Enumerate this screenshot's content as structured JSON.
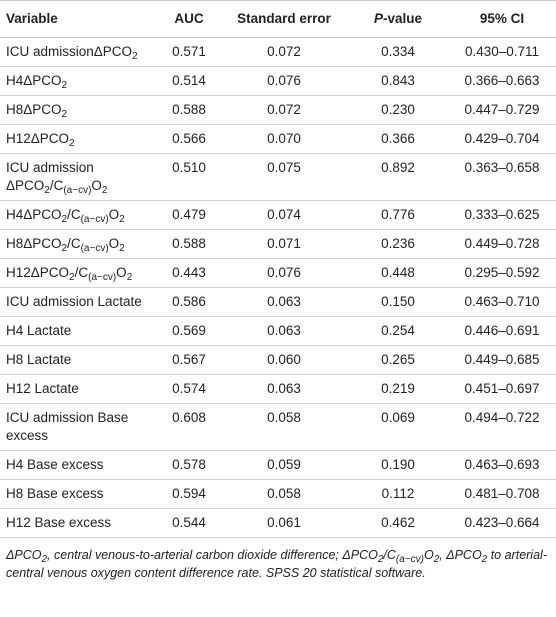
{
  "table": {
    "header": [
      [
        "Variable"
      ],
      [
        "AUC"
      ],
      [
        "Standard error"
      ],
      [
        {
          "i": "P"
        },
        "-value"
      ],
      [
        "95% CI"
      ]
    ],
    "rows": [
      {
        "variable": [
          "ICU admissionΔPCO",
          {
            "sub": "2"
          }
        ],
        "auc": "0.571",
        "se": "0.072",
        "p": "0.334",
        "ci": "0.430–0.711"
      },
      {
        "variable": [
          "H4ΔPCO",
          {
            "sub": "2"
          }
        ],
        "auc": "0.514",
        "se": "0.076",
        "p": "0.843",
        "ci": "0.366–0.663"
      },
      {
        "variable": [
          "H8ΔPCO",
          {
            "sub": "2"
          }
        ],
        "auc": "0.588",
        "se": "0.072",
        "p": "0.230",
        "ci": "0.447–0.729"
      },
      {
        "variable": [
          "H12ΔPCO",
          {
            "sub": "2"
          }
        ],
        "auc": "0.566",
        "se": "0.070",
        "p": "0.366",
        "ci": "0.429–0.704"
      },
      {
        "variable": [
          "ICU admission ΔPCO",
          {
            "sub": "2"
          },
          "/C",
          {
            "sub": "(a−cv)"
          },
          "O",
          {
            "sub": "2"
          }
        ],
        "auc": "0.510",
        "se": "0.075",
        "p": "0.892",
        "ci": "0.363–0.658"
      },
      {
        "variable": [
          "H4ΔPCO",
          {
            "sub": "2"
          },
          "/C",
          {
            "sub": "(a−cv)"
          },
          "O",
          {
            "sub": "2"
          }
        ],
        "auc": "0.479",
        "se": "0.074",
        "p": "0.776",
        "ci": "0.333–0.625"
      },
      {
        "variable": [
          "H8ΔPCO",
          {
            "sub": "2"
          },
          "/C",
          {
            "sub": "(a−cv)"
          },
          "O",
          {
            "sub": "2"
          }
        ],
        "auc": "0.588",
        "se": "0.071",
        "p": "0.236",
        "ci": "0.449–0.728"
      },
      {
        "variable": [
          "H12ΔPCO",
          {
            "sub": "2"
          },
          "/C",
          {
            "sub": "(a−cv)"
          },
          "O",
          {
            "sub": "2"
          }
        ],
        "auc": "0.443",
        "se": "0.076",
        "p": "0.448",
        "ci": "0.295–0.592"
      },
      {
        "variable": [
          "ICU admission Lactate"
        ],
        "auc": "0.586",
        "se": "0.063",
        "p": "0.150",
        "ci": "0.463–0.710"
      },
      {
        "variable": [
          "H4 Lactate"
        ],
        "auc": "0.569",
        "se": "0.063",
        "p": "0.254",
        "ci": "0.446–0.691"
      },
      {
        "variable": [
          "H8 Lactate"
        ],
        "auc": "0.567",
        "se": "0.060",
        "p": "0.265",
        "ci": "0.449–0.685"
      },
      {
        "variable": [
          "H12 Lactate"
        ],
        "auc": "0.574",
        "se": "0.063",
        "p": "0.219",
        "ci": "0.451–0.697"
      },
      {
        "variable": [
          "ICU admission Base excess"
        ],
        "auc": "0.608",
        "se": "0.058",
        "p": "0.069",
        "ci": "0.494–0.722"
      },
      {
        "variable": [
          "H4 Base excess"
        ],
        "auc": "0.578",
        "se": "0.059",
        "p": "0.190",
        "ci": "0.463–0.693"
      },
      {
        "variable": [
          "H8 Base excess"
        ],
        "auc": "0.594",
        "se": "0.058",
        "p": "0.112",
        "ci": "0.481–0.708"
      },
      {
        "variable": [
          "H12 Base excess"
        ],
        "auc": "0.544",
        "se": "0.061",
        "p": "0.462",
        "ci": "0.423–0.664"
      }
    ]
  },
  "footnote": [
    "ΔPCO",
    {
      "sub": "2"
    },
    ", central venous-to-arterial carbon dioxide difference; ΔPCO",
    {
      "sub": "2"
    },
    "/C",
    {
      "sub": "(a−cv)"
    },
    "O",
    {
      "sub": "2"
    },
    ", ΔPCO",
    {
      "sub": "2"
    },
    " to arterial-central venous oxygen content difference rate. SPSS 20 statistical software."
  ]
}
